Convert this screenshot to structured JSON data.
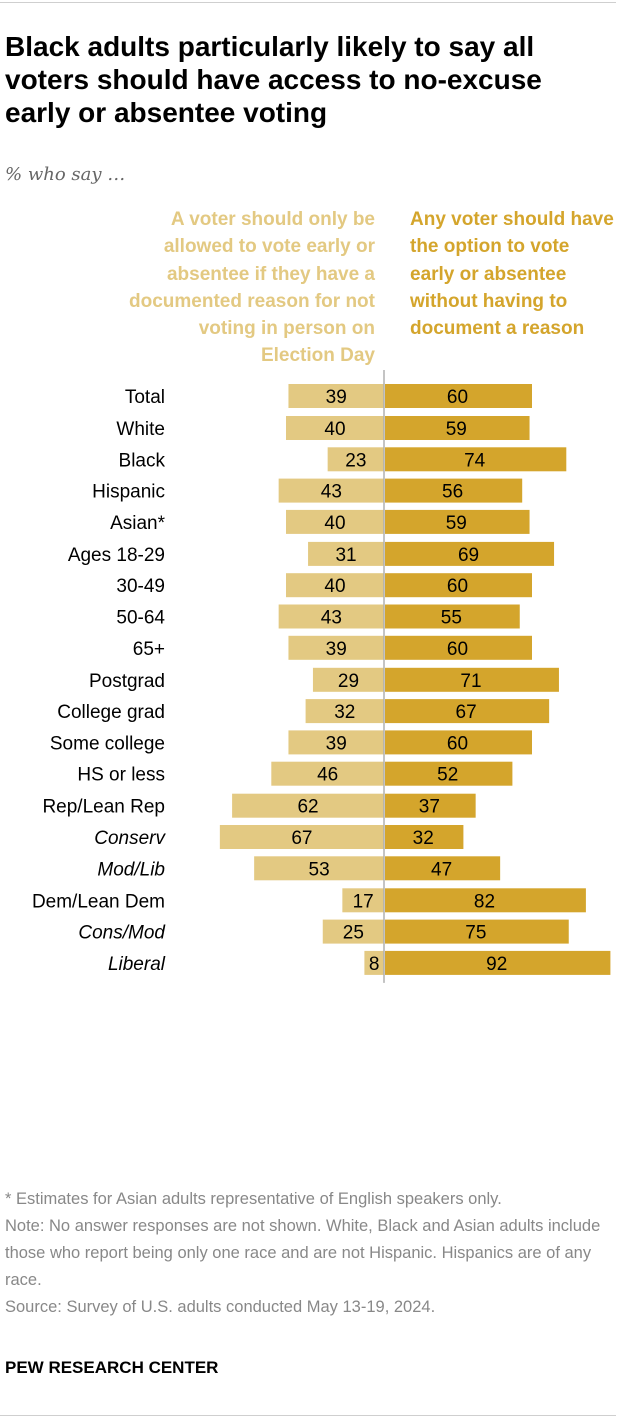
{
  "header": {
    "title": "Black adults particularly likely to say all voters should have access to no-excuse early or absentee voting",
    "subtitle": "% who say …"
  },
  "legend": {
    "left": "A voter should only be allowed to vote early or absentee if they have a documented reason for not voting in person on Election Day",
    "right": "Any voter should have the option to vote early or absentee without having to document a reason"
  },
  "colors": {
    "left_bar": "#e3c982",
    "right_bar": "#d4a52c",
    "axis": "#b0b0b0",
    "footnote_text": "#888888"
  },
  "chart_data": {
    "type": "bar",
    "orientation": "diverging-horizontal",
    "categories": [
      "Total",
      "White",
      "Black",
      "Hispanic",
      "Asian*",
      "Ages 18-29",
      "30-49",
      "50-64",
      "65+",
      "Postgrad",
      "College grad",
      "Some college",
      "HS or less",
      "Rep/Lean Rep",
      "Conserv",
      "Mod/Lib",
      "Dem/Lean Dem",
      "Cons/Mod",
      "Liberal"
    ],
    "italic_categories": [
      "Conserv",
      "Mod/Lib",
      "Cons/Mod",
      "Liberal"
    ],
    "groups": [
      [
        0
      ],
      [
        1,
        2,
        3,
        4
      ],
      [
        5,
        6,
        7,
        8
      ],
      [
        9,
        10,
        11,
        12
      ],
      [
        13,
        14,
        15
      ],
      [
        16,
        17,
        18
      ]
    ],
    "series": [
      {
        "name": "A voter should only be allowed to vote early or absentee if they have a documented reason for not voting in person on Election Day",
        "values": [
          39,
          40,
          23,
          43,
          40,
          31,
          40,
          43,
          39,
          29,
          32,
          39,
          46,
          62,
          67,
          53,
          17,
          25,
          8
        ]
      },
      {
        "name": "Any voter should have the option to vote early or absentee without having to document a reason",
        "values": [
          60,
          59,
          74,
          56,
          59,
          69,
          60,
          55,
          60,
          71,
          67,
          60,
          52,
          37,
          32,
          47,
          82,
          75,
          92
        ]
      }
    ],
    "xlim": [
      -100,
      100
    ]
  },
  "footer": {
    "note_asian": "* Estimates for Asian adults representative of English speakers only.",
    "note": "Note: No answer responses are not shown. White, Black and Asian adults include those who report being only one race and are not Hispanic. Hispanics are of any race.",
    "source": "Source: Survey of U.S. adults conducted May 13-19, 2024.",
    "brand": "PEW RESEARCH CENTER"
  }
}
